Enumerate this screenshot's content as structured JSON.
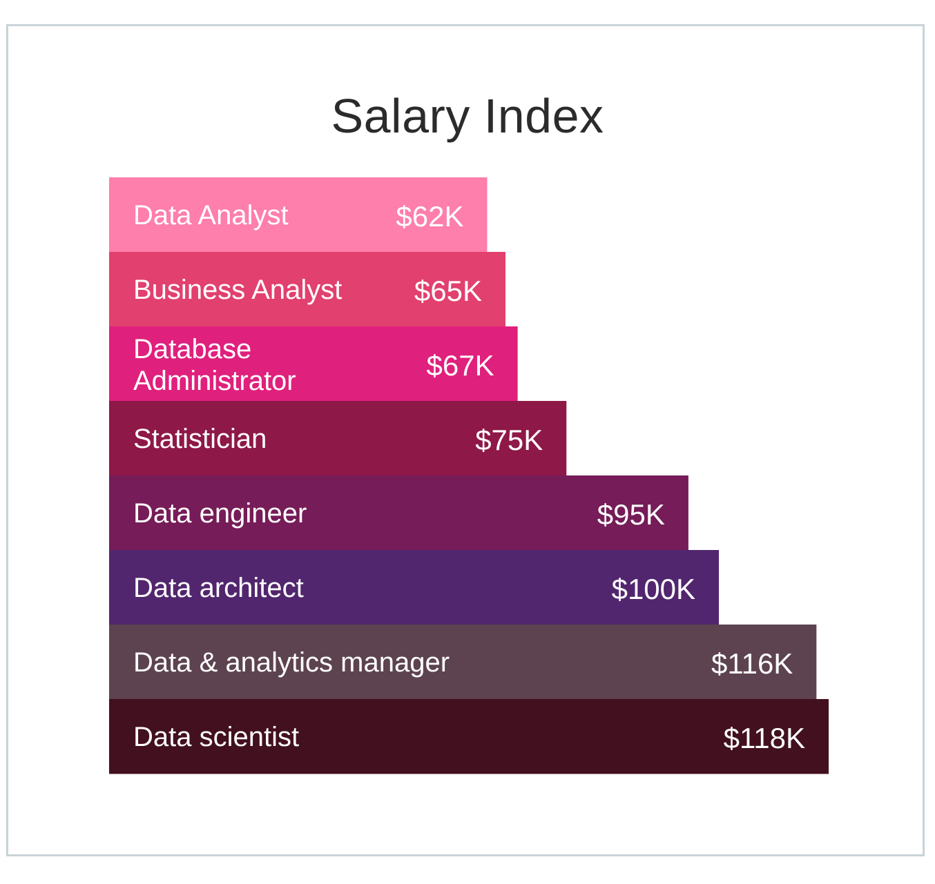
{
  "chart_data": {
    "type": "bar",
    "orientation": "horizontal",
    "title": "Salary Index",
    "categories": [
      "Data Analyst",
      "Business Analyst",
      "Database Administrator",
      "Statistician",
      "Data engineer",
      "Data architect",
      "Data & analytics manager",
      "Data scientist"
    ],
    "values": [
      62,
      65,
      67,
      75,
      95,
      100,
      116,
      118
    ],
    "value_labels": [
      "$62K",
      "$65K",
      "$67K",
      "$75K",
      "$95K",
      "$100K",
      "$116K",
      "$118K"
    ],
    "colors": [
      "#fe7eac",
      "#e2406e",
      "#e0207d",
      "#8e1847",
      "#761c58",
      "#52266e",
      "#5d434f",
      "#42101f"
    ],
    "xlim": [
      0,
      118
    ],
    "grid": false,
    "legend": "none"
  }
}
